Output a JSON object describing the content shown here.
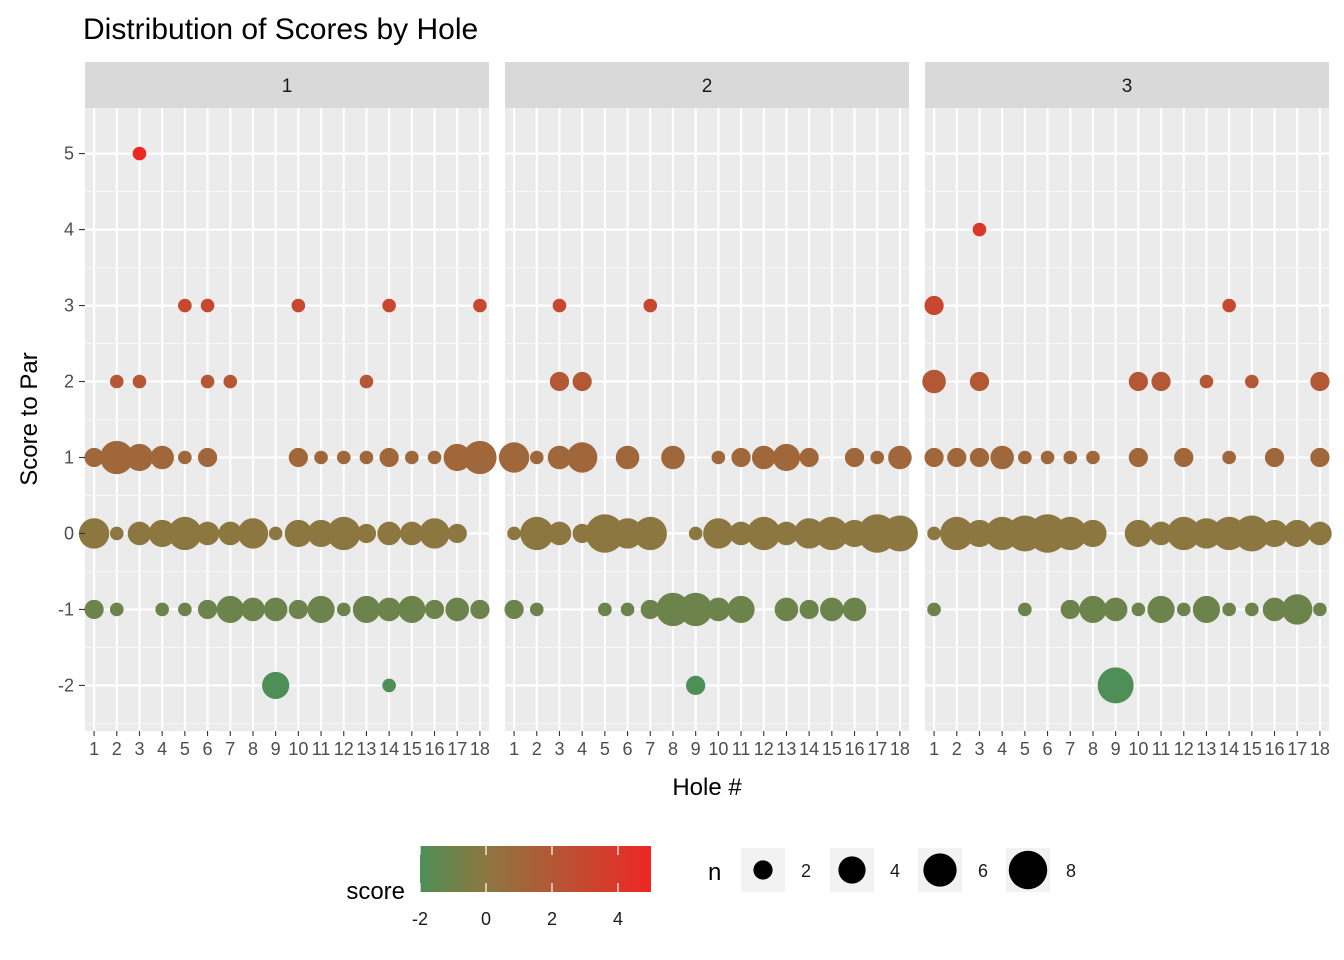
{
  "chart_data": {
    "type": "scatter",
    "title": "Distribution of Scores by Hole",
    "xlabel": "Hole #",
    "ylabel": "Score to Par",
    "x_ticks": [
      "1",
      "2",
      "3",
      "4",
      "5",
      "6",
      "7",
      "8",
      "9",
      "10",
      "11",
      "12",
      "13",
      "14",
      "15",
      "16",
      "17",
      "18"
    ],
    "y_ticks": [
      "-2",
      "-1",
      "0",
      "1",
      "2",
      "3",
      "4",
      "5"
    ],
    "ylim": [
      -2.6,
      5.6
    ],
    "xlim": [
      0.6,
      18.4
    ],
    "grid": true,
    "facets": [
      {
        "label": "1",
        "points": [
          {
            "x": 3,
            "y": 5,
            "n": 1
          },
          {
            "x": 5,
            "y": 3,
            "n": 1
          },
          {
            "x": 6,
            "y": 3,
            "n": 1
          },
          {
            "x": 10,
            "y": 3,
            "n": 1
          },
          {
            "x": 14,
            "y": 3,
            "n": 1
          },
          {
            "x": 18,
            "y": 3,
            "n": 1
          },
          {
            "x": 2,
            "y": 2,
            "n": 1
          },
          {
            "x": 3,
            "y": 2,
            "n": 1
          },
          {
            "x": 6,
            "y": 2,
            "n": 1
          },
          {
            "x": 7,
            "y": 2,
            "n": 1
          },
          {
            "x": 13,
            "y": 2,
            "n": 1
          },
          {
            "x": 1,
            "y": 1,
            "n": 2
          },
          {
            "x": 2,
            "y": 1,
            "n": 6
          },
          {
            "x": 3,
            "y": 1,
            "n": 4
          },
          {
            "x": 4,
            "y": 1,
            "n": 3
          },
          {
            "x": 5,
            "y": 1,
            "n": 1
          },
          {
            "x": 6,
            "y": 1,
            "n": 2
          },
          {
            "x": 10,
            "y": 1,
            "n": 2
          },
          {
            "x": 11,
            "y": 1,
            "n": 1
          },
          {
            "x": 12,
            "y": 1,
            "n": 1
          },
          {
            "x": 13,
            "y": 1,
            "n": 1
          },
          {
            "x": 14,
            "y": 1,
            "n": 2
          },
          {
            "x": 15,
            "y": 1,
            "n": 1
          },
          {
            "x": 16,
            "y": 1,
            "n": 1
          },
          {
            "x": 17,
            "y": 1,
            "n": 4
          },
          {
            "x": 18,
            "y": 1,
            "n": 6
          },
          {
            "x": 1,
            "y": 0,
            "n": 5
          },
          {
            "x": 2,
            "y": 0,
            "n": 1
          },
          {
            "x": 3,
            "y": 0,
            "n": 3
          },
          {
            "x": 4,
            "y": 0,
            "n": 4
          },
          {
            "x": 5,
            "y": 0,
            "n": 6
          },
          {
            "x": 6,
            "y": 0,
            "n": 3
          },
          {
            "x": 7,
            "y": 0,
            "n": 3
          },
          {
            "x": 8,
            "y": 0,
            "n": 5
          },
          {
            "x": 9,
            "y": 0,
            "n": 1
          },
          {
            "x": 10,
            "y": 0,
            "n": 4
          },
          {
            "x": 11,
            "y": 0,
            "n": 4
          },
          {
            "x": 12,
            "y": 0,
            "n": 6
          },
          {
            "x": 13,
            "y": 0,
            "n": 2
          },
          {
            "x": 14,
            "y": 0,
            "n": 3
          },
          {
            "x": 15,
            "y": 0,
            "n": 3
          },
          {
            "x": 16,
            "y": 0,
            "n": 5
          },
          {
            "x": 17,
            "y": 0,
            "n": 2
          },
          {
            "x": 1,
            "y": -1,
            "n": 2
          },
          {
            "x": 2,
            "y": -1,
            "n": 1
          },
          {
            "x": 4,
            "y": -1,
            "n": 1
          },
          {
            "x": 5,
            "y": -1,
            "n": 1
          },
          {
            "x": 6,
            "y": -1,
            "n": 2
          },
          {
            "x": 7,
            "y": -1,
            "n": 4
          },
          {
            "x": 8,
            "y": -1,
            "n": 3
          },
          {
            "x": 9,
            "y": -1,
            "n": 3
          },
          {
            "x": 10,
            "y": -1,
            "n": 2
          },
          {
            "x": 11,
            "y": -1,
            "n": 4
          },
          {
            "x": 12,
            "y": -1,
            "n": 1
          },
          {
            "x": 13,
            "y": -1,
            "n": 4
          },
          {
            "x": 14,
            "y": -1,
            "n": 3
          },
          {
            "x": 15,
            "y": -1,
            "n": 4
          },
          {
            "x": 16,
            "y": -1,
            "n": 2
          },
          {
            "x": 17,
            "y": -1,
            "n": 3
          },
          {
            "x": 18,
            "y": -1,
            "n": 2
          },
          {
            "x": 9,
            "y": -2,
            "n": 4
          },
          {
            "x": 14,
            "y": -2,
            "n": 1
          }
        ]
      },
      {
        "label": "2",
        "points": [
          {
            "x": 3,
            "y": 3,
            "n": 1
          },
          {
            "x": 7,
            "y": 3,
            "n": 1
          },
          {
            "x": 3,
            "y": 2,
            "n": 2
          },
          {
            "x": 4,
            "y": 2,
            "n": 2
          },
          {
            "x": 1,
            "y": 1,
            "n": 5
          },
          {
            "x": 2,
            "y": 1,
            "n": 1
          },
          {
            "x": 3,
            "y": 1,
            "n": 3
          },
          {
            "x": 4,
            "y": 1,
            "n": 5
          },
          {
            "x": 6,
            "y": 1,
            "n": 3
          },
          {
            "x": 8,
            "y": 1,
            "n": 3
          },
          {
            "x": 10,
            "y": 1,
            "n": 1
          },
          {
            "x": 11,
            "y": 1,
            "n": 2
          },
          {
            "x": 12,
            "y": 1,
            "n": 3
          },
          {
            "x": 13,
            "y": 1,
            "n": 4
          },
          {
            "x": 14,
            "y": 1,
            "n": 2
          },
          {
            "x": 16,
            "y": 1,
            "n": 2
          },
          {
            "x": 17,
            "y": 1,
            "n": 1
          },
          {
            "x": 18,
            "y": 1,
            "n": 3
          },
          {
            "x": 1,
            "y": 0,
            "n": 1
          },
          {
            "x": 2,
            "y": 0,
            "n": 6
          },
          {
            "x": 3,
            "y": 0,
            "n": 3
          },
          {
            "x": 4,
            "y": 0,
            "n": 2
          },
          {
            "x": 5,
            "y": 0,
            "n": 8
          },
          {
            "x": 6,
            "y": 0,
            "n": 5
          },
          {
            "x": 7,
            "y": 0,
            "n": 6
          },
          {
            "x": 9,
            "y": 0,
            "n": 1
          },
          {
            "x": 10,
            "y": 0,
            "n": 5
          },
          {
            "x": 11,
            "y": 0,
            "n": 3
          },
          {
            "x": 12,
            "y": 0,
            "n": 6
          },
          {
            "x": 13,
            "y": 0,
            "n": 3
          },
          {
            "x": 14,
            "y": 0,
            "n": 5
          },
          {
            "x": 15,
            "y": 0,
            "n": 6
          },
          {
            "x": 16,
            "y": 0,
            "n": 4
          },
          {
            "x": 17,
            "y": 0,
            "n": 8
          },
          {
            "x": 18,
            "y": 0,
            "n": 7
          },
          {
            "x": 1,
            "y": -1,
            "n": 2
          },
          {
            "x": 2,
            "y": -1,
            "n": 1
          },
          {
            "x": 5,
            "y": -1,
            "n": 1
          },
          {
            "x": 6,
            "y": -1,
            "n": 1
          },
          {
            "x": 7,
            "y": -1,
            "n": 2
          },
          {
            "x": 8,
            "y": -1,
            "n": 6
          },
          {
            "x": 9,
            "y": -1,
            "n": 6
          },
          {
            "x": 10,
            "y": -1,
            "n": 3
          },
          {
            "x": 11,
            "y": -1,
            "n": 4
          },
          {
            "x": 13,
            "y": -1,
            "n": 3
          },
          {
            "x": 14,
            "y": -1,
            "n": 2
          },
          {
            "x": 15,
            "y": -1,
            "n": 3
          },
          {
            "x": 16,
            "y": -1,
            "n": 3
          },
          {
            "x": 9,
            "y": -2,
            "n": 2
          }
        ]
      },
      {
        "label": "3",
        "points": [
          {
            "x": 3,
            "y": 4,
            "n": 1
          },
          {
            "x": 1,
            "y": 3,
            "n": 2
          },
          {
            "x": 14,
            "y": 3,
            "n": 1
          },
          {
            "x": 1,
            "y": 2,
            "n": 3
          },
          {
            "x": 3,
            "y": 2,
            "n": 2
          },
          {
            "x": 10,
            "y": 2,
            "n": 2
          },
          {
            "x": 11,
            "y": 2,
            "n": 2
          },
          {
            "x": 13,
            "y": 2,
            "n": 1
          },
          {
            "x": 15,
            "y": 2,
            "n": 1
          },
          {
            "x": 18,
            "y": 2,
            "n": 2
          },
          {
            "x": 1,
            "y": 1,
            "n": 2
          },
          {
            "x": 2,
            "y": 1,
            "n": 2
          },
          {
            "x": 3,
            "y": 1,
            "n": 2
          },
          {
            "x": 4,
            "y": 1,
            "n": 3
          },
          {
            "x": 5,
            "y": 1,
            "n": 1
          },
          {
            "x": 6,
            "y": 1,
            "n": 1
          },
          {
            "x": 7,
            "y": 1,
            "n": 1
          },
          {
            "x": 8,
            "y": 1,
            "n": 1
          },
          {
            "x": 10,
            "y": 1,
            "n": 2
          },
          {
            "x": 12,
            "y": 1,
            "n": 2
          },
          {
            "x": 14,
            "y": 1,
            "n": 1
          },
          {
            "x": 16,
            "y": 1,
            "n": 2
          },
          {
            "x": 18,
            "y": 1,
            "n": 2
          },
          {
            "x": 1,
            "y": 0,
            "n": 1
          },
          {
            "x": 2,
            "y": 0,
            "n": 6
          },
          {
            "x": 3,
            "y": 0,
            "n": 4
          },
          {
            "x": 4,
            "y": 0,
            "n": 6
          },
          {
            "x": 5,
            "y": 0,
            "n": 7
          },
          {
            "x": 6,
            "y": 0,
            "n": 8
          },
          {
            "x": 7,
            "y": 0,
            "n": 6
          },
          {
            "x": 8,
            "y": 0,
            "n": 4
          },
          {
            "x": 10,
            "y": 0,
            "n": 4
          },
          {
            "x": 11,
            "y": 0,
            "n": 3
          },
          {
            "x": 12,
            "y": 0,
            "n": 6
          },
          {
            "x": 13,
            "y": 0,
            "n": 5
          },
          {
            "x": 14,
            "y": 0,
            "n": 6
          },
          {
            "x": 15,
            "y": 0,
            "n": 7
          },
          {
            "x": 16,
            "y": 0,
            "n": 4
          },
          {
            "x": 17,
            "y": 0,
            "n": 4
          },
          {
            "x": 18,
            "y": 0,
            "n": 3
          },
          {
            "x": 1,
            "y": -1,
            "n": 1
          },
          {
            "x": 5,
            "y": -1,
            "n": 1
          },
          {
            "x": 7,
            "y": -1,
            "n": 2
          },
          {
            "x": 8,
            "y": -1,
            "n": 4
          },
          {
            "x": 9,
            "y": -1,
            "n": 3
          },
          {
            "x": 10,
            "y": -1,
            "n": 1
          },
          {
            "x": 11,
            "y": -1,
            "n": 4
          },
          {
            "x": 12,
            "y": -1,
            "n": 1
          },
          {
            "x": 13,
            "y": -1,
            "n": 4
          },
          {
            "x": 14,
            "y": -1,
            "n": 1
          },
          {
            "x": 15,
            "y": -1,
            "n": 1
          },
          {
            "x": 16,
            "y": -1,
            "n": 3
          },
          {
            "x": 17,
            "y": -1,
            "n": 5
          },
          {
            "x": 18,
            "y": -1,
            "n": 1
          },
          {
            "x": 9,
            "y": -2,
            "n": 7
          }
        ]
      }
    ],
    "color_legend": {
      "title": "score",
      "ticks": [
        -2,
        0,
        2,
        4
      ],
      "labels": [
        "-2",
        "0",
        "2",
        "4"
      ],
      "range": [
        -2,
        5
      ],
      "colors": [
        "#4E8F57",
        "#8C7740",
        "#EE2724"
      ]
    },
    "size_legend": {
      "title": "n",
      "values": [
        2,
        4,
        6,
        8
      ],
      "labels": [
        "2",
        "4",
        "6",
        "8"
      ]
    }
  }
}
